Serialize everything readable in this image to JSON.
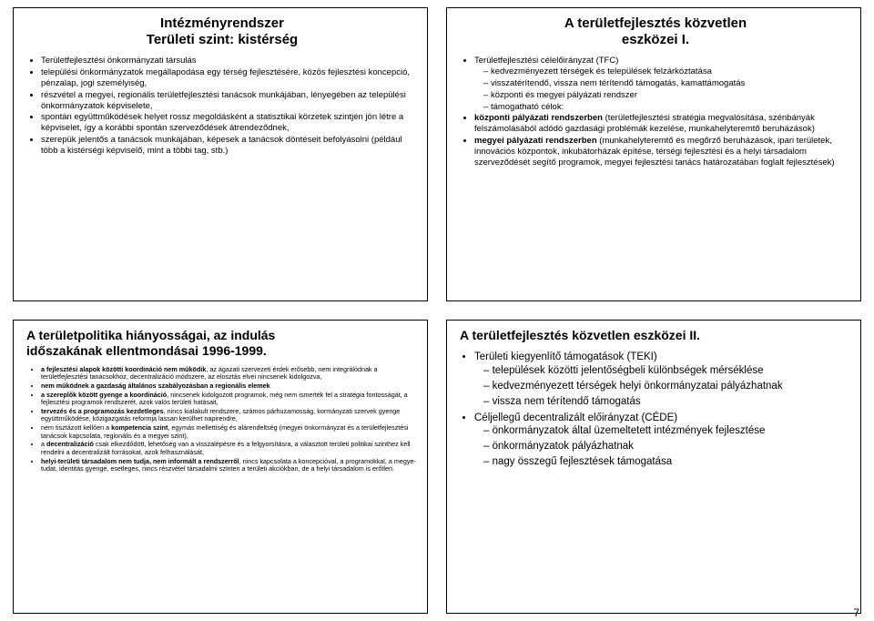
{
  "topLeft": {
    "title1": "Intézményrendszer",
    "title2": "Területi szint: kistérség",
    "items": [
      "Területfejlesztési önkormányzati társulás",
      "települési önkormányzatok megállapodása egy térség fejlesztésére, közös fejlesztési koncepció, pénzalap, jogi személyiség,",
      "részvétel a megyei, regionális területfejlesztési tanácsok munkájában, lényegében az települési önkormányzatok képviselete,",
      "spontán együttműködések helyet rossz megoldásként a statisztikai körzetek szintjén jön létre a képviselet, így a korábbi spontán szerveződések átrendeződnek,",
      "szerepük jelentős a tanácsok munkájában, képesek a tanácsok döntéseit befolyásolni (például több a kistérségi képviselő, mint a többi tag, stb.)"
    ]
  },
  "topRight": {
    "title1": "A területfejlesztés közvetlen",
    "title2": "eszközei I.",
    "items": [
      {
        "text": "Területfejlesztési célelőirányzat (TFC)",
        "sub": [
          "kedvezményezett térségek és települések felzárkóztatása",
          "visszatérítendő, vissza nem térítendő támogatás, kamattámogatás",
          "központi és megyei pályázati rendszer",
          "támogatható célok:"
        ]
      },
      {
        "html": "<b>központi pályázati rendszerben</b> (területfejlesztési stratégia megvalósítása, szénbányák felszámolásából adódó gazdasági problémák kezelése, munkahelyteremtő beruházások)"
      },
      {
        "html": "<b>megyei pályázati rendszerben</b> (munkahelyteremtő és megőrző beruházások, ipari területek, innovációs központok, inkubátorházak építése, térségi fejlesztési és a helyi társadalom szerveződését segítő programok, megyei fejlesztési tanács határozatában foglalt fejlesztések)"
      }
    ]
  },
  "bottomLeft": {
    "title1": "A területpolitika hiányosságai, az indulás",
    "title2": "időszakának ellentmondásai 1996-1999.",
    "items": [
      {
        "html": "<b>a fejlesztési alapok közötti koordináció nem működik</b>, az ágazati szervezeti érdek erősebb, nem integrálódnak a területfejlesztési tanácsokhoz, decentralizáció módszere, az elosztás elvei nincsenek kidolgozva,"
      },
      {
        "html": "<b>nem működnek a gazdaság általános szabályozásban a regionális elemek</b>"
      },
      {
        "html": "<b>a szereplők között gyenge a koordináció</b>, nincsenek kidolgozott programok, még nem ismerték fel a stratégia fontosságát, a fejlesztési programok rendszerét, azok valós területi hatásait,"
      },
      {
        "html": "<b>tervezés és a programozás kezdetleges</b>, nincs kialakult rendszere, számos párhuzamosság, kormányzati szervek gyenge együttműködése, közigazgatás reformja lassan kerülhet napirendre,"
      },
      {
        "html": "nem tisztázott kellően a <b>kompetencia szint</b>, egymás mellettiség és alárendeltség (megyei önkormányzat és a területfejlesztési tanácsok kapcsolata, regionális és a megyei szint),"
      },
      {
        "html": "a <b>decentralizáció</b> csak elkezdődött, lehetőség van a visszalépésre és a felgyorsításra, a választott területi politikai szinthez kell rendelni a decentralizált forrásokat, azok felhasználását,"
      },
      {
        "html": "<b>helyi-területi társadalom nem tudja, nem informált a rendszerről</b>, nincs kapcsolata a koncepcióval, a programokkal, a megye-tudat, identitás gyenge, esetleges, nincs részvétel társadalmi szinten a területi akciókban, de a helyi társadalom is erőtlen."
      }
    ]
  },
  "bottomRight": {
    "title": "A területfejlesztés közvetlen eszközei II.",
    "items": [
      {
        "text": "Területi kiegyenlítő támogatások (TEKI)",
        "sub": [
          "települések közötti jelentőségbeli különbségek mérséklése",
          "kedvezményezett térségek helyi önkormányzatai pályázhatnak",
          "vissza nem térítendő támogatás"
        ]
      },
      {
        "text": "Céljellegű decentralizált előirányzat (CÉDE)",
        "sub": [
          "önkormányzatok által üzemeltetett intézmények fejlesztése",
          "önkormányzatok pályázhatnak",
          "nagy összegű fejlesztések támogatása"
        ]
      }
    ]
  },
  "pageNumber": "7"
}
